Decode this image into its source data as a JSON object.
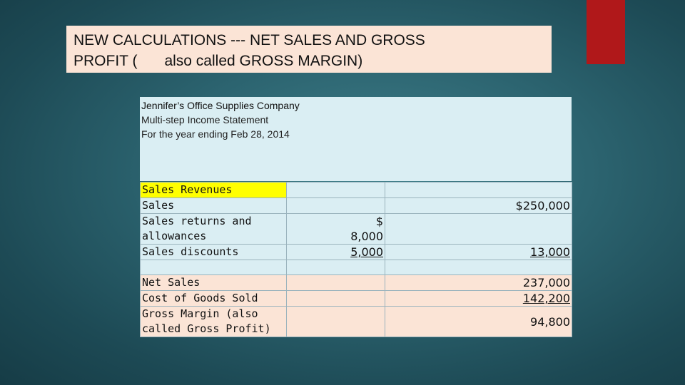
{
  "title": {
    "line1": "NEW CALCULATIONS  --- NET SALES AND GROSS",
    "line2a": "PROFIT (",
    "line2b": "also called GROSS MARGIN)"
  },
  "statement_header": {
    "company": "Jennifer’s Office Supplies Company",
    "statement": "Multi-step Income Statement",
    "period": "For the year ending Feb 28, 2014"
  },
  "rows": {
    "sales_revenues": "Sales Revenues",
    "sales": {
      "label": "Sales",
      "total": "$250,000"
    },
    "returns": {
      "label": "Sales returns and allowances",
      "dollar": "$",
      "amount": "8,000"
    },
    "discounts": {
      "label": "Sales discounts",
      "amount": "5,000",
      "total": "13,000"
    },
    "net_sales": {
      "label": "Net Sales",
      "total": "237,000"
    },
    "cogs": {
      "label": "Cost of Goods Sold",
      "total": "142,200"
    },
    "gross_margin": {
      "label": "Gross Margin (also called Gross Profit)",
      "total": "94,800"
    }
  },
  "colors": {
    "accent": "#b0181a",
    "highlight": "#ffff00",
    "peach": "#fbe4d6",
    "light_blue": "#daeef3"
  }
}
